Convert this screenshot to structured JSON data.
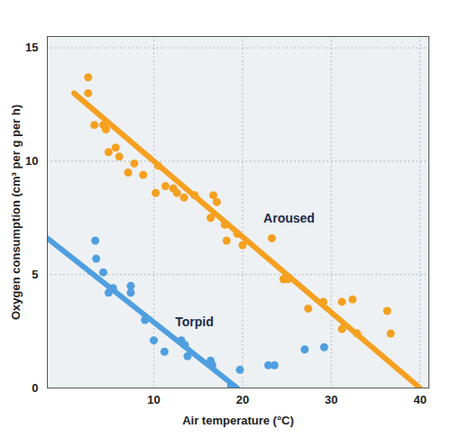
{
  "chart_data": {
    "type": "scatter",
    "x_label": "Air temperature (°C)",
    "y_label": "Oxygen consumption (cm³ per g per h)",
    "xlim": [
      -2,
      41
    ],
    "ylim": [
      0,
      15.5
    ],
    "xticks": [
      10,
      20,
      30,
      40
    ],
    "yticks": [
      0,
      5,
      10,
      15
    ],
    "grid": true,
    "series": [
      {
        "name": "Aroused",
        "color": "#f5a01f",
        "marker": "circle",
        "x": [
          2.6,
          2.6,
          3.3,
          4.3,
          4.6,
          4.9,
          5.7,
          6.1,
          7.8,
          7.1,
          8.8,
          10.5,
          10.2,
          11.3,
          12.2,
          12.6,
          13.4,
          14.6,
          16.7,
          17.1,
          16.4,
          18.0,
          18.2,
          19.4,
          20.0,
          23.3,
          24.6,
          25.1,
          27.4,
          29.1,
          31.2,
          32.4,
          31.2,
          32.9,
          36.3,
          36.7
        ],
        "values": [
          13.7,
          13.0,
          11.6,
          11.6,
          11.4,
          10.4,
          10.6,
          10.2,
          9.9,
          9.5,
          9.4,
          9.8,
          8.6,
          8.9,
          8.8,
          8.6,
          8.4,
          8.5,
          8.5,
          8.2,
          7.5,
          7.2,
          6.5,
          6.8,
          6.3,
          6.6,
          4.8,
          4.8,
          3.5,
          3.8,
          3.8,
          3.9,
          2.6,
          2.4,
          3.4,
          2.4
        ],
        "line": {
          "x": [
            1,
            40
          ],
          "values": [
            13.0,
            0
          ]
        }
      },
      {
        "name": "Torpid",
        "color": "#4f9fe0",
        "marker": "circle",
        "x": [
          3.4,
          3.5,
          4.3,
          4.9,
          5.4,
          7.4,
          7.4,
          9.0,
          10.0,
          11.2,
          13.1,
          13.5,
          13.8,
          16.4,
          16.6,
          18.7,
          19.7,
          22.9,
          23.6,
          27.0,
          29.2
        ],
        "values": [
          6.5,
          5.7,
          5.1,
          4.2,
          4.4,
          4.2,
          4.5,
          3.0,
          2.1,
          1.6,
          2.1,
          1.9,
          1.4,
          1.2,
          1.0,
          0.1,
          0.8,
          1.0,
          1.0,
          1.7,
          1.8
        ],
        "line": {
          "x": [
            -2,
            19.4
          ],
          "values": [
            6.6,
            0
          ]
        }
      }
    ]
  }
}
